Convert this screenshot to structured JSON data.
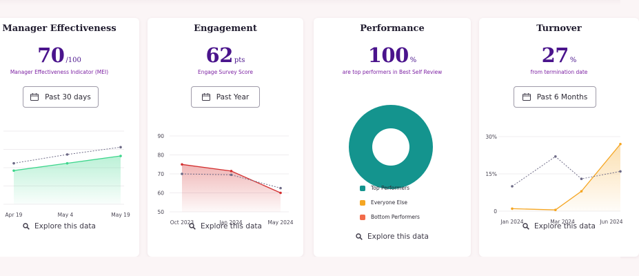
{
  "colors": {
    "accent_purple": "#4a148c",
    "subtitle_purple": "#7b1fa2",
    "teal": "#14948e",
    "green_line": "#3dd68c",
    "red_line": "#d32f2f",
    "orange_line": "#f5a623",
    "gray_dotted": "#6d6a86"
  },
  "cards": [
    {
      "title": "Manager Effectiveness",
      "value": "70",
      "unit": "/100",
      "subtitle": "Manager Effectiveness Indicator (MEI)",
      "dropdown": "Past 30 days",
      "dropdown_icon": "calendar-icon",
      "explore": "Explore this data",
      "explore_icon": "search-icon"
    },
    {
      "title": "Engagement",
      "value": "62",
      "unit": "pts",
      "subtitle": "Engage Survey Score",
      "dropdown": "Past Year",
      "dropdown_icon": "calendar-icon",
      "explore": "Explore this data",
      "explore_icon": "search-icon"
    },
    {
      "title": "Performance",
      "value": "100",
      "unit": "%",
      "subtitle": "are top performers in Best Self Review",
      "explore": "Explore this data",
      "explore_icon": "search-icon",
      "legend": [
        {
          "label": "Top Performers",
          "color": "#14948e"
        },
        {
          "label": "Everyone Else",
          "color": "#f5a623"
        },
        {
          "label": "Bottom Performers",
          "color": "#f26b4a"
        }
      ]
    },
    {
      "title": "Turnover",
      "value": "27",
      "unit": "%",
      "subtitle": "from termination date",
      "dropdown": "Past 6 Months",
      "dropdown_icon": "calendar-icon",
      "explore": "Explore this data",
      "explore_icon": "search-icon"
    }
  ],
  "chart_data": [
    {
      "type": "area",
      "xticks": [
        "Apr 19",
        "May 4",
        "May 19"
      ],
      "series": [
        {
          "style": "solid",
          "color": "#3dd68c",
          "x": [
            0,
            1,
            2
          ],
          "values": [
            63,
            68,
            73
          ]
        },
        {
          "style": "dotted",
          "color": "#6d6a86",
          "x": [
            0,
            1,
            2
          ],
          "values": [
            68,
            74,
            79
          ]
        }
      ],
      "ylim": [
        40,
        90
      ],
      "grid": true
    },
    {
      "type": "area",
      "yticks": [
        "90",
        "80",
        "70",
        "60",
        "50"
      ],
      "xticks": [
        "Oct 2023",
        "Jan 2024",
        "May 2024"
      ],
      "series": [
        {
          "style": "solid",
          "color": "#d32f2f",
          "x": [
            0,
            1,
            2
          ],
          "values": [
            75,
            71.5,
            60
          ]
        },
        {
          "style": "dotted",
          "color": "#6d6a86",
          "x": [
            0,
            1,
            2
          ],
          "values": [
            70,
            69.5,
            62.5
          ]
        }
      ],
      "ylim": [
        50,
        90
      ],
      "grid": true
    },
    {
      "type": "pie",
      "slices": [
        {
          "label": "Top Performers",
          "value": 100
        },
        {
          "label": "Everyone Else",
          "value": 0
        },
        {
          "label": "Bottom Performers",
          "value": 0
        }
      ]
    },
    {
      "type": "area",
      "yticks": [
        "30%",
        "15%",
        "0"
      ],
      "xticks": [
        "Jan 2024",
        "Mar 2024",
        "Jun 2024"
      ],
      "series": [
        {
          "style": "solid",
          "color": "#f5a623",
          "x": [
            0,
            1,
            1.6,
            2.5
          ],
          "values": [
            1,
            0.5,
            8,
            27
          ]
        },
        {
          "style": "dotted",
          "color": "#6d6a86",
          "x": [
            0,
            1,
            1.6,
            2.5
          ],
          "values": [
            10,
            22,
            13,
            16
          ]
        }
      ],
      "ylim": [
        0,
        30
      ],
      "grid": true
    }
  ]
}
